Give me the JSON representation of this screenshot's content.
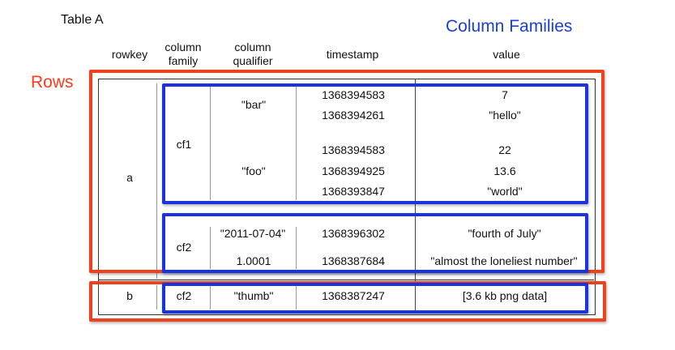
{
  "title": "Table A",
  "column_families_label": "Column Families",
  "rows_label": "Rows",
  "headers": {
    "rowkey": "rowkey",
    "column_family": [
      "column",
      "family"
    ],
    "column_qualifier": [
      "column",
      "qualifier"
    ],
    "timestamp": "timestamp",
    "value": "value"
  },
  "row_a": {
    "rowkey": "a",
    "cf1": {
      "name": "cf1",
      "bar": {
        "qualifier": "\"bar\"",
        "cells": [
          {
            "timestamp": "1368394583",
            "value": "7"
          },
          {
            "timestamp": "1368394261",
            "value": "\"hello\""
          }
        ]
      },
      "foo": {
        "qualifier": "\"foo\"",
        "cells": [
          {
            "timestamp": "1368394583",
            "value": "22"
          },
          {
            "timestamp": "1368394925",
            "value": "13.6"
          },
          {
            "timestamp": "1368393847",
            "value": "\"world\""
          }
        ]
      }
    },
    "cf2": {
      "name": "cf2",
      "entries": [
        {
          "qualifier": "\"2011-07-04\"",
          "timestamp": "1368396302",
          "value": "\"fourth of July\""
        },
        {
          "qualifier": "1.0001",
          "timestamp": "1368387684",
          "value": "\"almost the loneliest number\""
        }
      ]
    }
  },
  "row_b": {
    "rowkey": "b",
    "family": "cf2",
    "qualifier": "\"thumb\"",
    "timestamp": "1368387247",
    "value": "[3.6 kb png data]"
  }
}
